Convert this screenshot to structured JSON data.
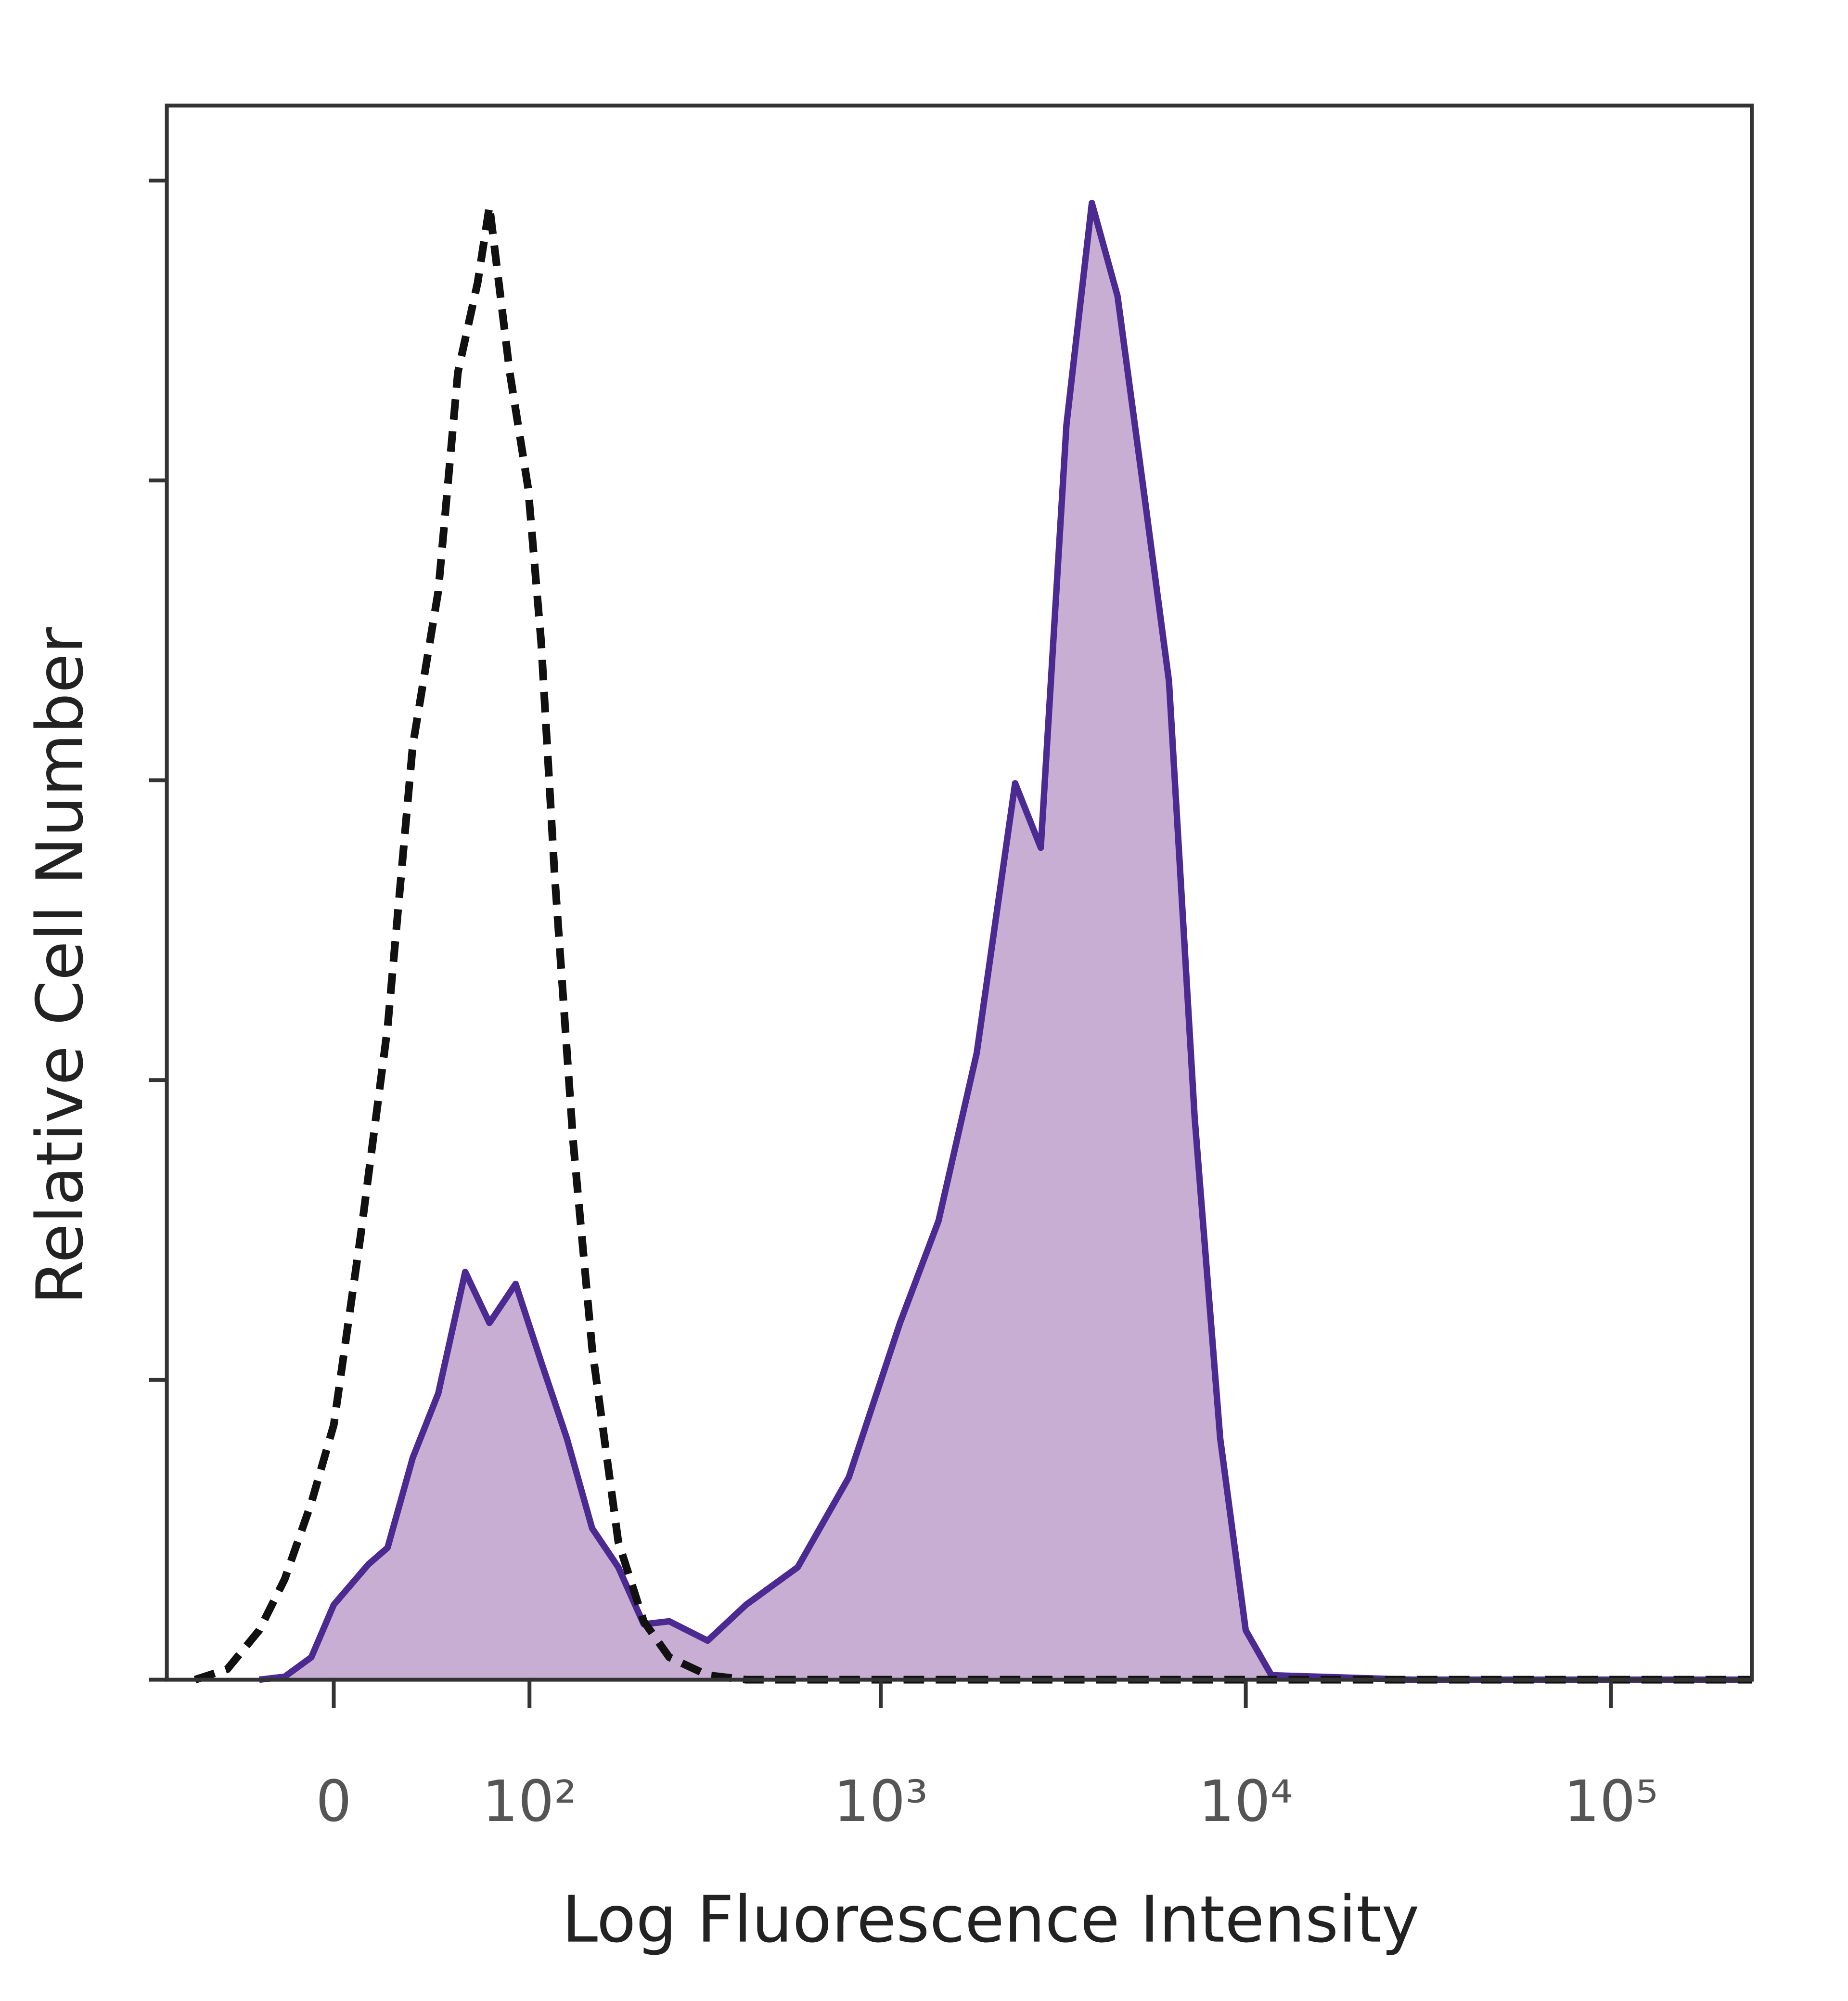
{
  "chart_data": {
    "type": "line",
    "xlabel": "Log Fluorescence Intensity",
    "ylabel": "Relative Cell Number",
    "xscale": "biexponential",
    "xlim": [
      -80,
      243000
    ],
    "xticks": [
      0,
      {
        "value": 100,
        "label": "10²"
      },
      {
        "value": 1000,
        "label": "10³"
      },
      {
        "value": 10000,
        "label": "10⁴"
      },
      {
        "value": 100000,
        "label": "10⁵"
      }
    ],
    "ylim": [
      0,
      105
    ],
    "yticks": [
      0,
      20,
      40,
      60,
      80,
      100
    ],
    "series": [
      {
        "color": "#4b2a91",
        "fill": "#c9aed3",
        "dashed": false,
        "x": [
          -31,
          -20,
          -9,
          0,
          14,
          22,
          33,
          45,
          59,
          73,
          90,
          109,
          131,
          156,
          186,
          220,
          260,
          333,
          426,
          591,
          817,
          1129,
          1440,
          1833,
          2334,
          2745,
          3227,
          3790,
          4456,
          5240,
          6163,
          7243,
          8511,
          9998,
          11750,
          28560,
          95800,
          243000
        ],
        "values": [
          0,
          0.2,
          1.5,
          5.0,
          7.7,
          8.8,
          14.8,
          19.1,
          27.2,
          23.8,
          26.4,
          21.2,
          16.1,
          10.1,
          7.5,
          3.7,
          3.9,
          2.6,
          5.0,
          7.5,
          13.5,
          23.8,
          30.6,
          41.8,
          59.8,
          55.5,
          83.7,
          98.5,
          92.3,
          79.5,
          66.6,
          37.5,
          16.1,
          3.3,
          0.3,
          0,
          0,
          0
        ]
      },
      {
        "color": "#111111",
        "dashed": true,
        "x": [
          -63,
          -46,
          -31,
          -20,
          -9,
          0,
          11,
          22,
          33,
          45,
          55,
          66,
          73,
          86,
          99,
          109,
          120,
          137,
          156,
          186,
          220,
          260,
          333,
          426,
          243000
        ],
        "values": [
          0,
          0.7,
          3.3,
          6.7,
          11.8,
          17.0,
          29.8,
          43.5,
          62.3,
          72.6,
          87.2,
          93.2,
          98.3,
          87.2,
          79.5,
          69.2,
          53.8,
          35.8,
          22.1,
          9.2,
          3.9,
          1.5,
          0.3,
          0,
          0
        ]
      }
    ]
  }
}
